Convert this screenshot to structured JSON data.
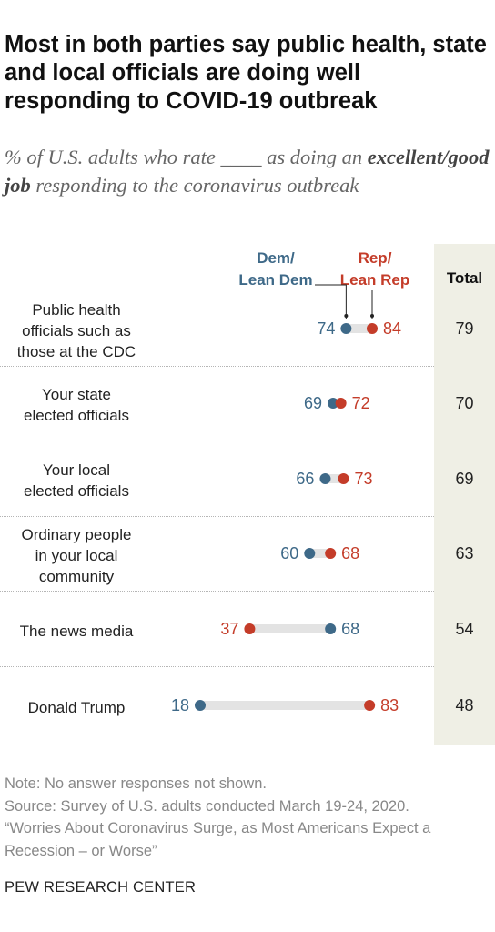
{
  "title": "Most in both parties say public health, state and local officials are doing well responding to COVID-19 outbreak",
  "subtitle": {
    "part1": "% of U.S. adults who rate ____ as doing an ",
    "emphasis": "excellent/good job",
    "part2": " responding to the coronavirus outbreak"
  },
  "legend": {
    "dem_line1": "Dem/",
    "dem_line2": "Lean Dem",
    "rep_line1": "Rep/",
    "rep_line2": "Lean Rep",
    "total": "Total"
  },
  "colors": {
    "dem": "#3e6988",
    "rep": "#c43c29",
    "bar": "#e3e3e3",
    "total_bg": "#efefe5"
  },
  "chart_data": {
    "type": "dot",
    "xlim": [
      0,
      100
    ],
    "series": [
      {
        "name": "Dem/Lean Dem",
        "values": [
          74,
          69,
          66,
          60,
          68,
          18
        ]
      },
      {
        "name": "Rep/Lean Rep",
        "values": [
          84,
          72,
          73,
          68,
          37,
          83
        ]
      },
      {
        "name": "Total",
        "values": [
          79,
          70,
          69,
          63,
          54,
          48
        ]
      }
    ],
    "rows": [
      {
        "label": [
          "Public health",
          "officials such as",
          "those at the CDC"
        ],
        "dem": 74,
        "rep": 84,
        "total": 79
      },
      {
        "label": [
          "Your state",
          "elected officials"
        ],
        "dem": 69,
        "rep": 72,
        "total": 70
      },
      {
        "label": [
          "Your local",
          "elected officials"
        ],
        "dem": 66,
        "rep": 73,
        "total": 69
      },
      {
        "label": [
          "Ordinary people",
          "in your local",
          "community"
        ],
        "dem": 60,
        "rep": 68,
        "total": 63
      },
      {
        "label": [
          "The news media"
        ],
        "dem": 68,
        "rep": 37,
        "total": 54
      },
      {
        "label": [
          "Donald Trump"
        ],
        "dem": 18,
        "rep": 83,
        "total": 48
      }
    ]
  },
  "footer": {
    "note": "Note: No answer responses not shown.",
    "source": "Source: Survey of U.S. adults conducted March 19-24, 2020.",
    "report": "“Worries About Coronavirus Surge, as Most Americans Expect a Recession – or Worse”",
    "brand": "PEW RESEARCH CENTER"
  }
}
